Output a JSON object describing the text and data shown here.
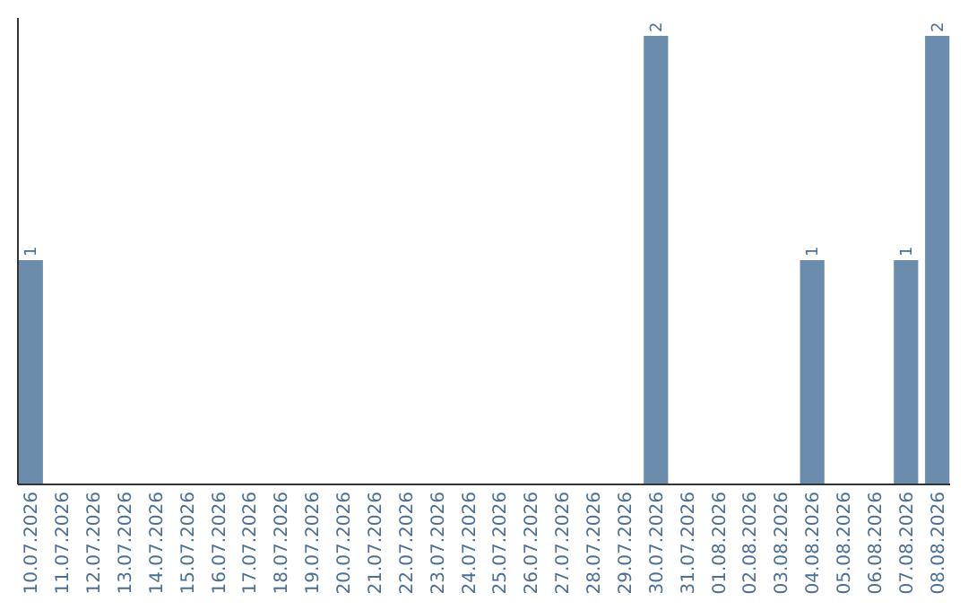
{
  "chart_data": {
    "type": "bar",
    "categories": [
      "10.07.2026",
      "11.07.2026",
      "12.07.2026",
      "13.07.2026",
      "14.07.2026",
      "15.07.2026",
      "16.07.2026",
      "17.07.2026",
      "18.07.2026",
      "19.07.2026",
      "20.07.2026",
      "21.07.2026",
      "22.07.2026",
      "23.07.2026",
      "24.07.2026",
      "25.07.2026",
      "26.07.2026",
      "27.07.2026",
      "28.07.2026",
      "29.07.2026",
      "30.07.2026",
      "31.07.2026",
      "01.08.2026",
      "02.08.2026",
      "03.08.2026",
      "04.08.2026",
      "05.08.2026",
      "06.08.2026",
      "07.08.2026",
      "08.08.2026"
    ],
    "values": [
      1,
      0,
      0,
      0,
      0,
      0,
      0,
      0,
      0,
      0,
      0,
      0,
      0,
      0,
      0,
      0,
      0,
      0,
      0,
      0,
      2,
      0,
      0,
      0,
      0,
      1,
      0,
      0,
      1,
      2
    ],
    "value_labels": [
      "1",
      null,
      null,
      null,
      null,
      null,
      null,
      null,
      null,
      null,
      null,
      null,
      null,
      null,
      null,
      null,
      null,
      null,
      null,
      null,
      "2",
      null,
      null,
      null,
      null,
      "1",
      null,
      null,
      "1",
      "2"
    ],
    "color": "#6b8cac",
    "ylim": [
      0,
      2.08
    ],
    "tick_labels": "x",
    "grid": false
  }
}
